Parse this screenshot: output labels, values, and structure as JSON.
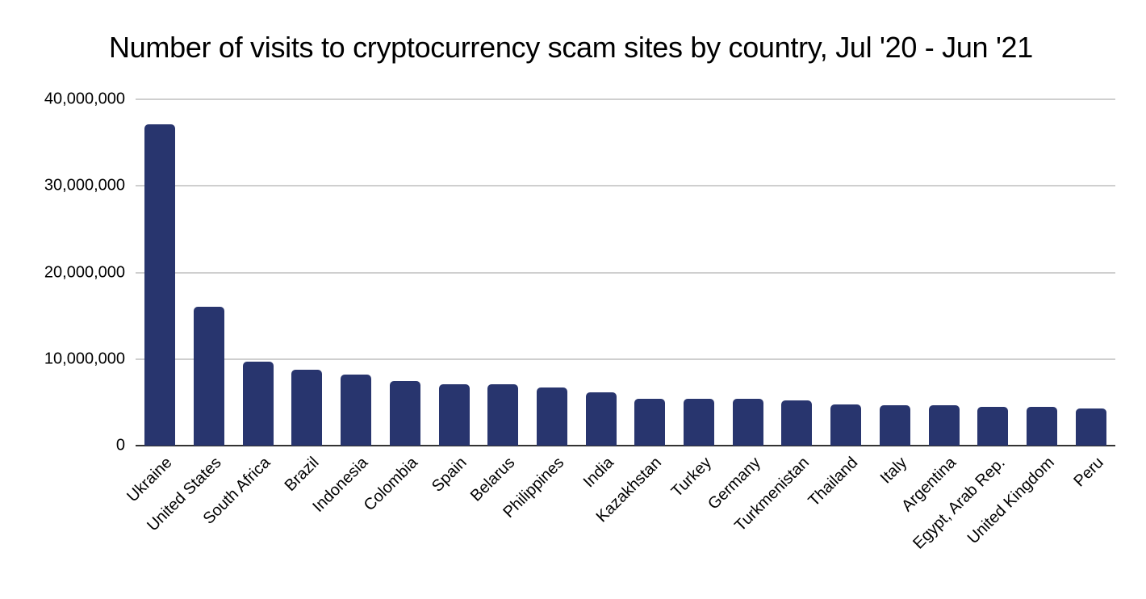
{
  "chart_data": {
    "type": "bar",
    "title": "Number of visits to cryptocurrency scam sites by country, Jul '20 - Jun '21",
    "xlabel": "",
    "ylabel": "",
    "ylim": [
      0,
      40000000
    ],
    "yticks": [
      0,
      10000000,
      20000000,
      30000000,
      40000000
    ],
    "ytick_labels": [
      "0",
      "10,000,000",
      "20,000,000",
      "30,000,000",
      "40,000,000"
    ],
    "grid": true,
    "legend": null,
    "bar_color": "#28356e",
    "categories": [
      "Ukraine",
      "United States",
      "South Africa",
      "Brazil",
      "Indonesia",
      "Colombia",
      "Spain",
      "Belarus",
      "Philippines",
      "India",
      "Kazakhstan",
      "Turkey",
      "Germany",
      "Turkmenistan",
      "Thailand",
      "Italy",
      "Argentina",
      "Egypt, Arab Rep.",
      "United Kingdom",
      "Peru"
    ],
    "values": [
      37100000,
      16000000,
      9700000,
      8800000,
      8200000,
      7500000,
      7100000,
      7100000,
      6700000,
      6200000,
      5400000,
      5400000,
      5400000,
      5200000,
      4800000,
      4700000,
      4700000,
      4500000,
      4500000,
      4300000
    ]
  }
}
